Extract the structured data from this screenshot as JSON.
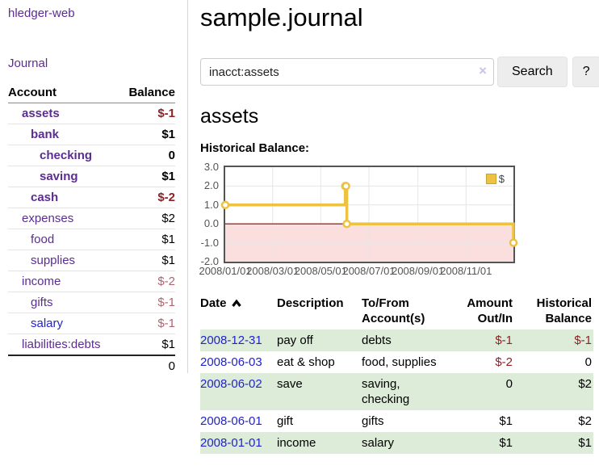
{
  "colors": {
    "link_purple": "#5b2d91",
    "link_blue": "#2222cc",
    "negative_strong": "#8e2026",
    "negative_soft": "#b2646c",
    "row_shade_green": "#ddecd8",
    "chart_series": "#edc240",
    "chart_negative_region": "#fbdfdf",
    "chart_zero_line": "#8b0000"
  },
  "sidebar": {
    "brand": "hledger-web",
    "journal_link": "Journal",
    "accounts": {
      "col_account": "Account",
      "col_balance": "Balance",
      "rows": [
        {
          "name": "assets",
          "depth": 1,
          "bold": true,
          "balance": "$-1",
          "balance_style": "neg-strong"
        },
        {
          "name": "bank",
          "depth": 2,
          "bold": true,
          "balance": "$1",
          "balance_style": "pos"
        },
        {
          "name": "checking",
          "depth": 3,
          "bold": true,
          "balance": "0",
          "balance_style": "pos"
        },
        {
          "name": "saving",
          "depth": 3,
          "bold": true,
          "balance": "$1",
          "balance_style": "pos"
        },
        {
          "name": "cash",
          "depth": 2,
          "bold": true,
          "balance": "$-2",
          "balance_style": "neg-strong"
        },
        {
          "name": "expenses",
          "depth": 1,
          "bold": false,
          "balance": "$2",
          "balance_style": "pos"
        },
        {
          "name": "food",
          "depth": 2,
          "bold": false,
          "balance": "$1",
          "balance_style": "pos"
        },
        {
          "name": "supplies",
          "depth": 2,
          "bold": false,
          "balance": "$1",
          "balance_style": "pos"
        },
        {
          "name": "income",
          "depth": 1,
          "bold": false,
          "balance": "$-2",
          "balance_style": "neg-soft"
        },
        {
          "name": "gifts",
          "depth": 2,
          "bold": false,
          "balance": "$-1",
          "balance_style": "neg-soft"
        },
        {
          "name": "salary",
          "depth": 2,
          "bold": false,
          "balance": "$-1",
          "balance_style": "neg-soft",
          "link_style": "blue"
        },
        {
          "name": "liabilities:debts",
          "depth": 1,
          "bold": false,
          "balance": "$1",
          "balance_style": "pos"
        }
      ],
      "total": "0"
    }
  },
  "main": {
    "title": "sample.journal",
    "search": {
      "value": "inacct:assets",
      "clear_icon": "×",
      "search_label": "Search",
      "help_label": "?"
    },
    "heading": "assets",
    "chart_label": "Historical Balance:"
  },
  "chart_data": {
    "type": "line",
    "step": true,
    "title": "Historical Balance:",
    "series": [
      {
        "name": "$",
        "color": "#edc240",
        "points": [
          [
            "2008-01-01",
            1
          ],
          [
            "2008-06-01",
            2
          ],
          [
            "2008-06-02",
            2
          ],
          [
            "2008-06-03",
            0
          ],
          [
            "2008-12-31",
            -1
          ]
        ]
      }
    ],
    "xlim": [
      "2008-01-01",
      "2008-12-31"
    ],
    "ylim": [
      -2,
      3
    ],
    "yticks": [
      "3.0",
      "2.0",
      "1.0",
      "0.0",
      "-1.0",
      "-2.0"
    ],
    "xticks": [
      "2008/01/01",
      "2008/03/01",
      "2008/05/01",
      "2008/07/01",
      "2008/09/01",
      "2008/11/01"
    ],
    "grid": true,
    "legend_position": "top-right",
    "negative_region_below": 0
  },
  "register": {
    "headers": {
      "date": "Date",
      "description": "Description",
      "accounts": "To/From Account(s)",
      "amount": "Amount Out/In",
      "balance": "Historical Balance"
    },
    "rows": [
      {
        "date": "2008-12-31",
        "description": "pay off",
        "accounts": "debts",
        "amount": "$-1",
        "balance": "$-1",
        "shaded": true
      },
      {
        "date": "2008-06-03",
        "description": "eat & shop",
        "accounts": "food, supplies",
        "amount": "$-2",
        "balance": "0",
        "shaded": false
      },
      {
        "date": "2008-06-02",
        "description": "save",
        "accounts": "saving, checking",
        "amount": "0",
        "balance": "$2",
        "shaded": true
      },
      {
        "date": "2008-06-01",
        "description": "gift",
        "accounts": "gifts",
        "amount": "$1",
        "balance": "$2",
        "shaded": false
      },
      {
        "date": "2008-01-01",
        "description": "income",
        "accounts": "salary",
        "amount": "$1",
        "balance": "$1",
        "shaded": true
      }
    ]
  }
}
